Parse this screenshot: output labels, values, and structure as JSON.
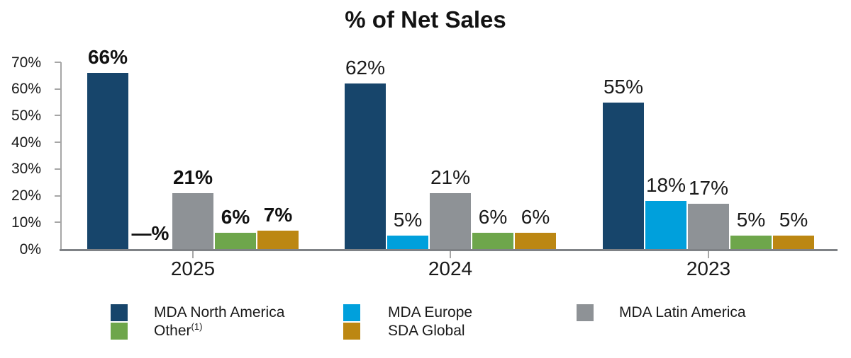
{
  "title": "% of Net Sales",
  "colors": {
    "navy": "#17456B",
    "cyan": "#00A0DC",
    "gray": "#8E9296",
    "green": "#6EA64B",
    "gold": "#BC8712",
    "axis_gray": "#A6A6A6",
    "baseline_gray": "#7F8286",
    "text": "#1A1A1A"
  },
  "chart_data": {
    "type": "bar",
    "title": "% of Net Sales",
    "categories": [
      "2025",
      "2024",
      "2023"
    ],
    "series": [
      {
        "name": "MDA North America",
        "color": "#17456B",
        "values": [
          66,
          62,
          55
        ],
        "labels": [
          "66%",
          "62%",
          "55%"
        ]
      },
      {
        "name": "MDA Europe",
        "color": "#00A0DC",
        "values": [
          0,
          5,
          18
        ],
        "labels": [
          "—%",
          "5%",
          "18%"
        ]
      },
      {
        "name": "MDA Latin America",
        "color": "#8E9296",
        "values": [
          21,
          21,
          17
        ],
        "labels": [
          "21%",
          "21%",
          "17%"
        ]
      },
      {
        "name": "Other(1)",
        "color": "#6EA64B",
        "values": [
          6,
          6,
          5
        ],
        "labels": [
          "6%",
          "6%",
          "5%"
        ]
      },
      {
        "name": "SDA Global",
        "color": "#BC8712",
        "values": [
          7,
          6,
          5
        ],
        "labels": [
          "7%",
          "6%",
          "5%"
        ]
      }
    ],
    "y_ticks": [
      "0%",
      "10%",
      "20%",
      "30%",
      "40%",
      "50%",
      "60%",
      "70%"
    ],
    "ylim": [
      0,
      70
    ],
    "grid": false,
    "emphasized_category": "2025",
    "legend_position": "bottom"
  },
  "legend": {
    "columns": [
      [
        {
          "label": "MDA North America",
          "sup": "",
          "color": "#17456B"
        },
        {
          "label": "Other",
          "sup": "(1)",
          "color": "#6EA64B"
        }
      ],
      [
        {
          "label": "MDA Europe",
          "sup": "",
          "color": "#00A0DC"
        },
        {
          "label": "SDA Global",
          "sup": "",
          "color": "#BC8712"
        }
      ],
      [
        {
          "label": "MDA Latin America",
          "sup": "",
          "color": "#8E9296"
        }
      ]
    ]
  }
}
